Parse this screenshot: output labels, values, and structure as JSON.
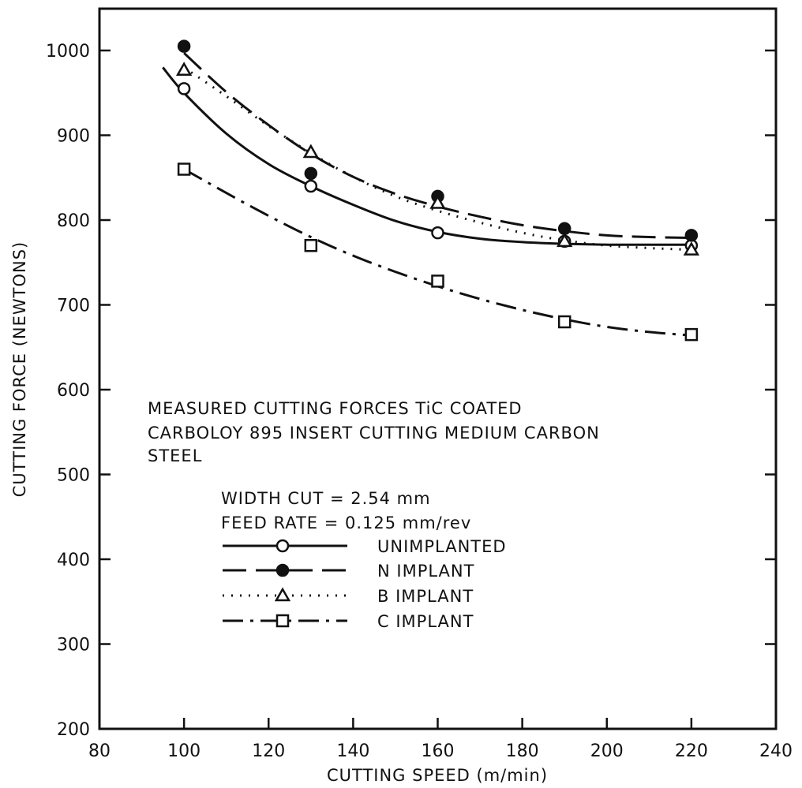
{
  "chart_data": {
    "type": "line",
    "xlabel": "CUTTING SPEED (m/min)",
    "ylabel": "CUTTING FORCE (NEWTONS)",
    "xlim": [
      80,
      240
    ],
    "ylim": [
      200,
      1050
    ],
    "x_ticks": [
      80,
      100,
      120,
      140,
      160,
      180,
      200,
      220,
      240
    ],
    "y_ticks": [
      200,
      300,
      400,
      500,
      600,
      700,
      800,
      900,
      1000
    ],
    "grid": false,
    "annotation_lines": [
      "MEASURED CUTTING FORCES TiC COATED",
      "CARBOLOY 895 INSERT CUTTING MEDIUM CARBON",
      "STEEL"
    ],
    "conditions": [
      "WIDTH CUT = 2.54 mm",
      "FEED RATE = 0.125 mm/rev"
    ],
    "legend_position": "center-left",
    "series": [
      {
        "name": "UNIMPLANTED",
        "marker": "open-circle",
        "line_style": "solid",
        "x": [
          100,
          130,
          160,
          190,
          220
        ],
        "y": [
          955,
          840,
          785,
          775,
          770
        ],
        "curve_x": [
          95,
          100,
          110,
          120,
          130,
          140,
          150,
          160,
          170,
          180,
          190,
          200,
          210,
          220
        ],
        "curve_y": [
          980,
          950,
          902,
          866,
          840,
          818,
          799,
          786,
          778,
          774,
          772,
          771,
          771,
          771
        ]
      },
      {
        "name": "N IMPLANT",
        "marker": "filled-circle",
        "line_style": "dashed",
        "x": [
          100,
          130,
          160,
          190,
          220
        ],
        "y": [
          1005,
          855,
          828,
          790,
          782
        ],
        "curve_x": [
          100,
          110,
          120,
          130,
          140,
          150,
          160,
          170,
          180,
          190,
          200,
          210,
          220
        ],
        "curve_y": [
          997,
          951,
          912,
          878,
          851,
          831,
          816,
          804,
          794,
          787,
          782,
          780,
          779
        ]
      },
      {
        "name": "B IMPLANT",
        "marker": "open-triangle",
        "line_style": "dotted",
        "x": [
          100,
          130,
          160,
          190,
          220
        ],
        "y": [
          977,
          880,
          820,
          775,
          765
        ],
        "curve_x": [
          100,
          110,
          120,
          130,
          140,
          150,
          160,
          170,
          180,
          190,
          200,
          210,
          220
        ],
        "curve_y": [
          980,
          946,
          911,
          879,
          851,
          828,
          811,
          797,
          785,
          776,
          770,
          767,
          765
        ]
      },
      {
        "name": "C IMPLANT",
        "marker": "open-square",
        "line_style": "dash-dot",
        "x": [
          100,
          130,
          160,
          190,
          220
        ],
        "y": [
          860,
          770,
          728,
          680,
          665
        ],
        "curve_x": [
          100,
          110,
          120,
          130,
          140,
          150,
          160,
          170,
          180,
          190,
          200,
          210,
          220
        ],
        "curve_y": [
          860,
          832,
          805,
          780,
          758,
          739,
          722,
          707,
          694,
          683,
          674,
          668,
          664
        ]
      }
    ]
  }
}
